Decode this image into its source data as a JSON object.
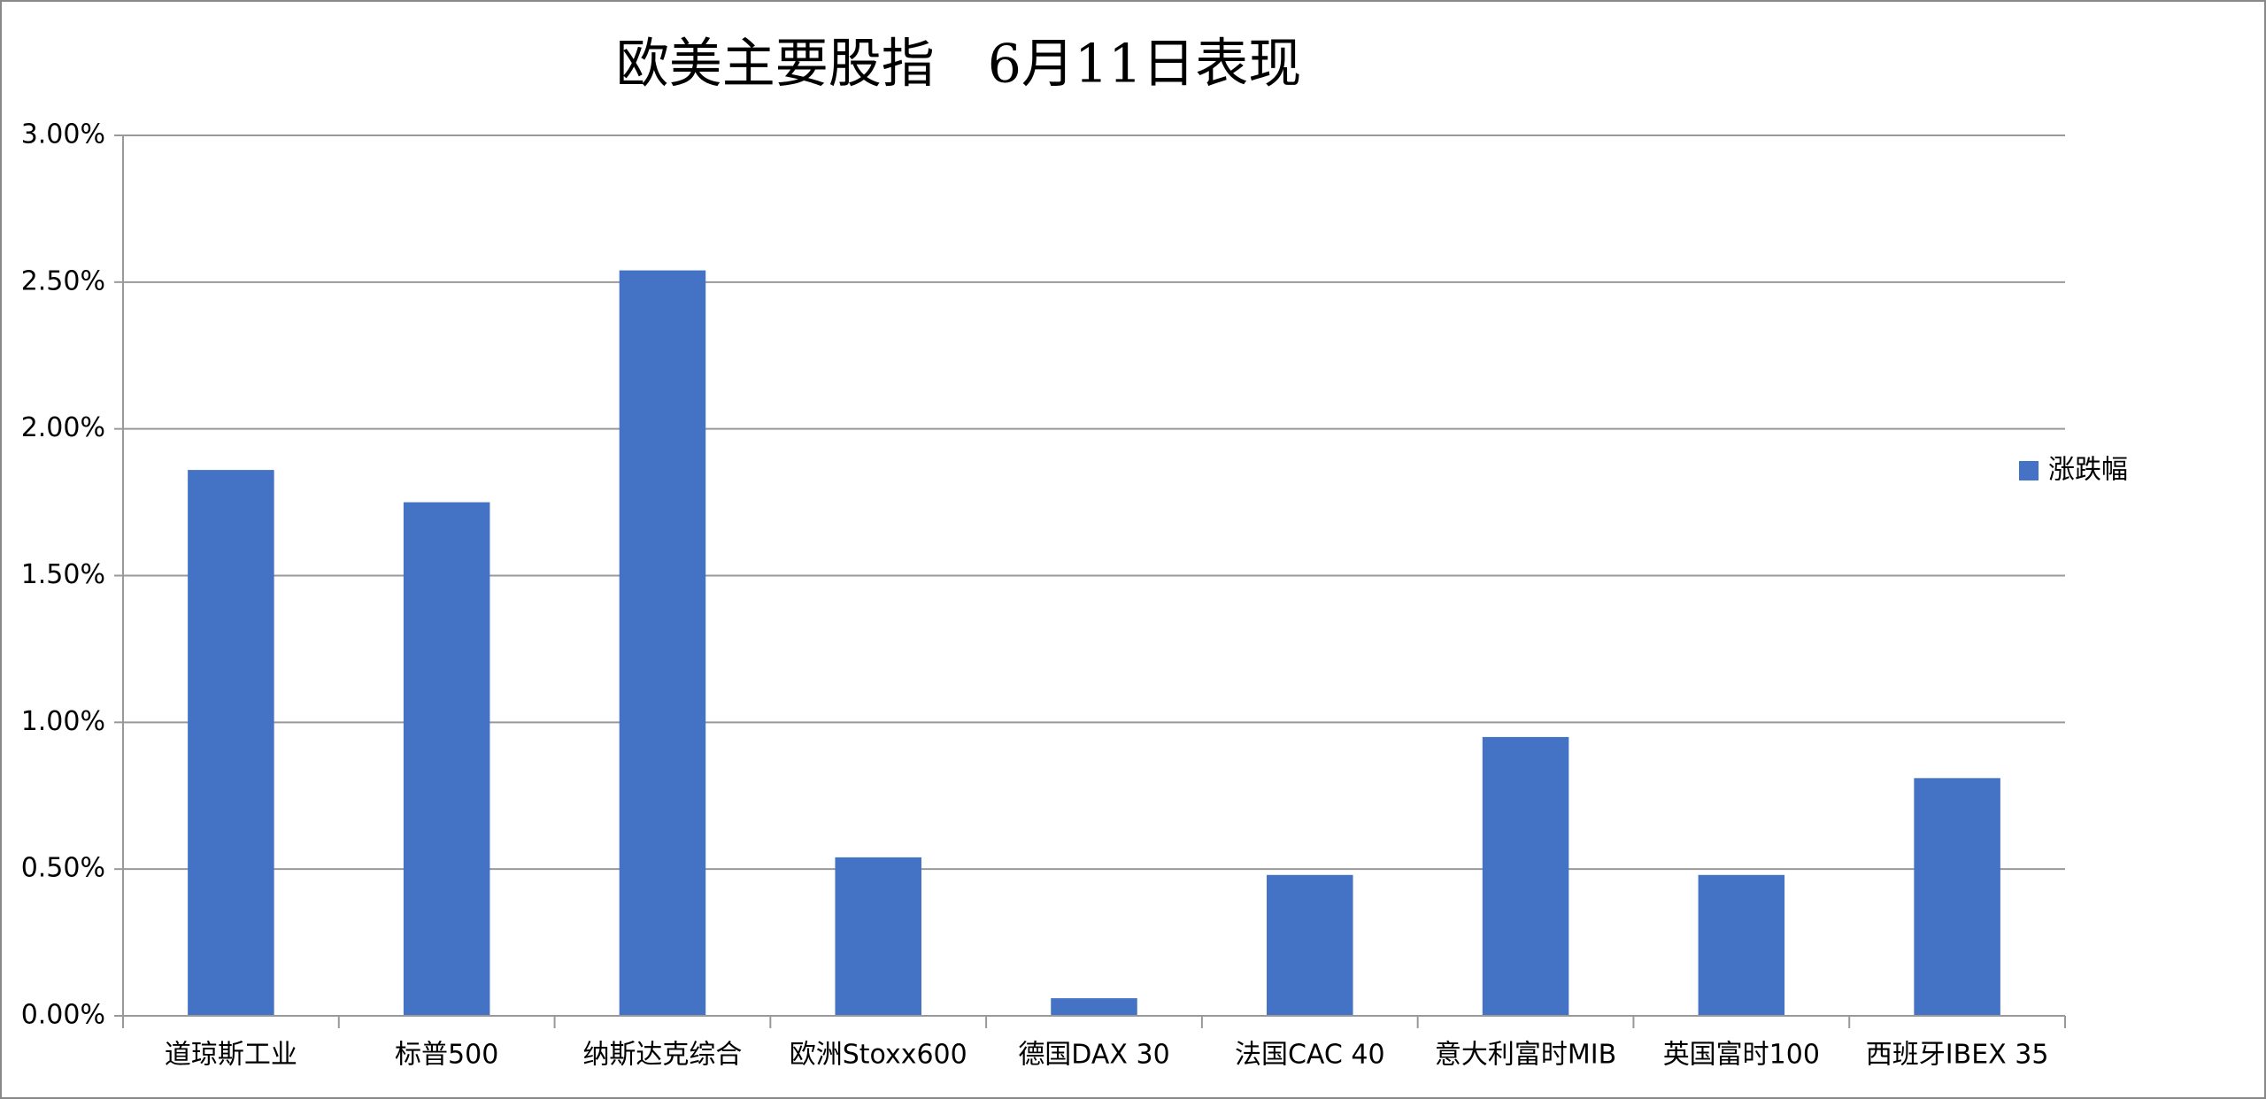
{
  "chart_data": {
    "type": "bar",
    "title": "欧美主要股指　6月11日表现",
    "categories": [
      "道琼斯工业",
      "标普500",
      "纳斯达克综合",
      "欧洲Stoxx600",
      "德国DAX 30",
      "法国CAC 40",
      "意大利富时MIB",
      "英国富时100",
      "西班牙IBEX 35"
    ],
    "series": [
      {
        "name": "涨跌幅",
        "color": "#4472c4",
        "values": [
          1.86,
          1.75,
          2.54,
          0.54,
          0.06,
          0.48,
          0.95,
          0.48,
          0.81
        ]
      }
    ],
    "ylim": [
      0,
      3
    ],
    "yticks": [
      {
        "value": 0,
        "label": "0.00%"
      },
      {
        "value": 0.5,
        "label": "0.50%"
      },
      {
        "value": 1,
        "label": "1.00%"
      },
      {
        "value": 1.5,
        "label": "1.50%"
      },
      {
        "value": 2,
        "label": "2.00%"
      },
      {
        "value": 2.5,
        "label": "2.50%"
      },
      {
        "value": 3,
        "label": "3.00%"
      }
    ],
    "grid": true,
    "legend": "right"
  }
}
